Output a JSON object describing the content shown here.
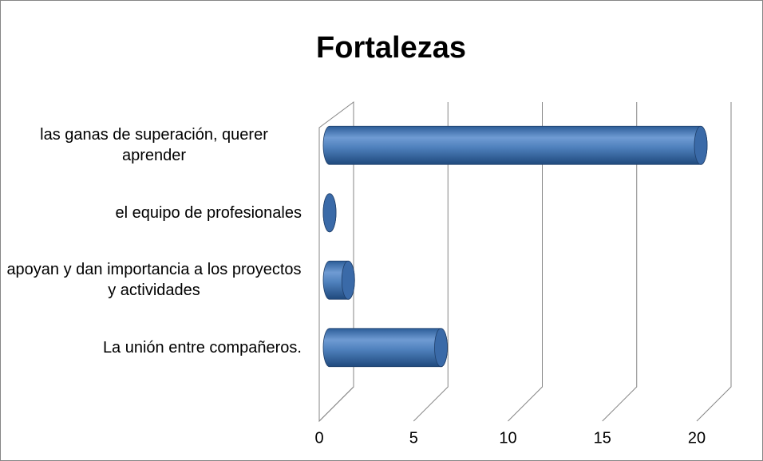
{
  "chart_data": {
    "type": "bar",
    "orientation": "horizontal",
    "title": "Fortalezas",
    "categories": [
      "las ganas de superación, querer aprender",
      "el equipo de profesionales",
      "apoyan y dan importancia a los proyectos y actividades",
      "La unión entre compañeros."
    ],
    "values": [
      20,
      0,
      1,
      6
    ],
    "color": "#4f81bd",
    "xlim": [
      0,
      20
    ],
    "xticks": [
      0,
      5,
      10,
      15,
      20
    ],
    "grid": true
  }
}
